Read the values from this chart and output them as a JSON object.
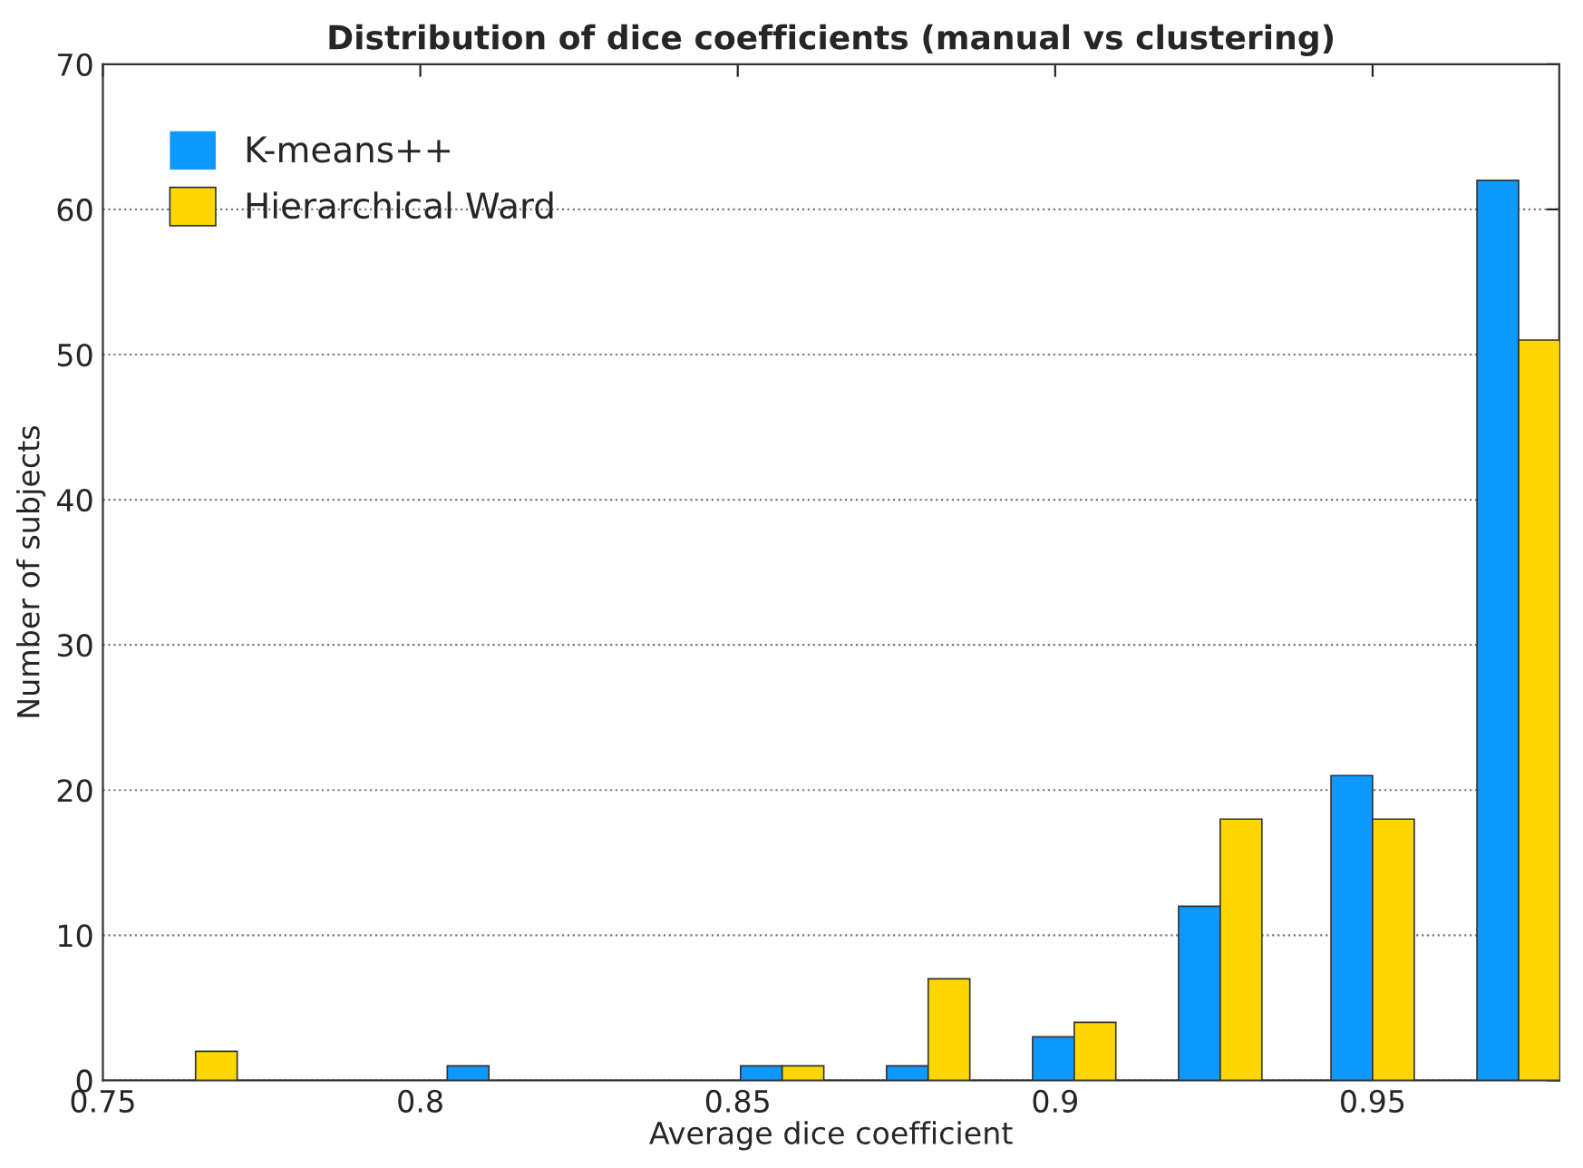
{
  "chart_data": {
    "type": "bar",
    "title": "Distribution of dice coefficients (manual vs clustering)",
    "xlabel": "Average dice coefficient",
    "ylabel": "Number of subjects",
    "x": [
      0.7646,
      0.7877,
      0.8108,
      0.834,
      0.857,
      0.88,
      0.903,
      0.926,
      0.95,
      0.973
    ],
    "series": [
      {
        "name": "K-means++",
        "color": "#0d99ff",
        "values": [
          0,
          0,
          1,
          0,
          1,
          1,
          3,
          12,
          21,
          62
        ]
      },
      {
        "name": "Hierarchical Ward",
        "color": "#ffd700",
        "values": [
          2,
          0,
          0,
          0,
          1,
          7,
          4,
          18,
          18,
          51
        ]
      }
    ],
    "xlim": [
      0.75,
      0.9794
    ],
    "xticks": [
      0.75,
      0.8,
      0.85,
      0.9,
      0.95
    ],
    "ylim": [
      0,
      70
    ],
    "yticks": [
      0,
      10,
      20,
      30,
      40,
      50,
      60,
      70
    ],
    "grid": "y",
    "legend": "top left"
  }
}
